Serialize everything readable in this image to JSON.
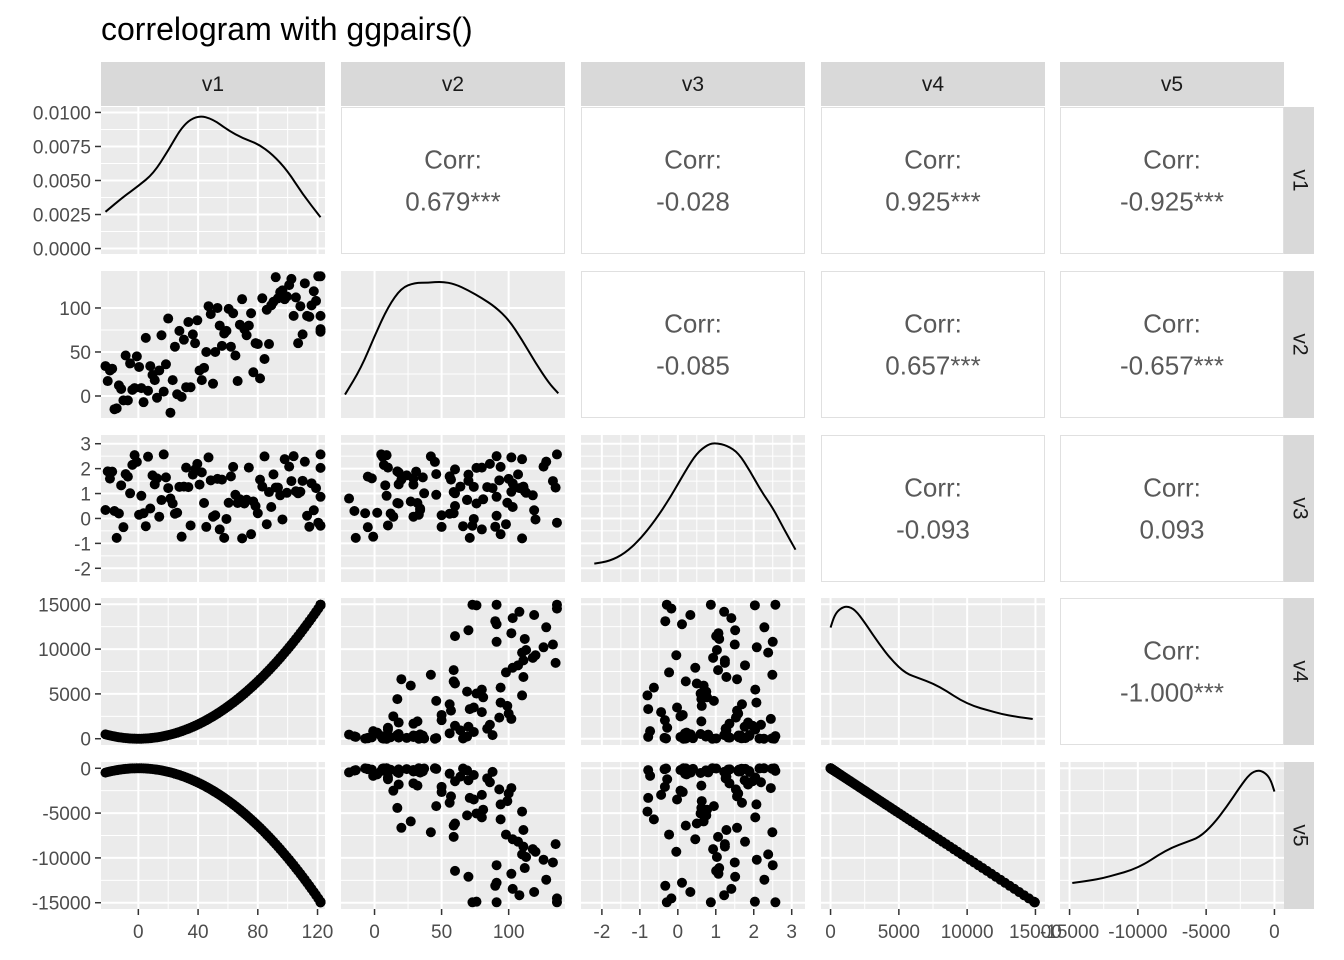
{
  "chart_data": {
    "type": "scatter",
    "title": "correlogram with ggpairs()",
    "variables": [
      "v1",
      "v2",
      "v3",
      "v4",
      "v5"
    ],
    "corr_label": "Corr:",
    "correlations": [
      {
        "row": "v1",
        "col": "v2",
        "value": "0.679***"
      },
      {
        "row": "v1",
        "col": "v3",
        "value": "-0.028"
      },
      {
        "row": "v1",
        "col": "v4",
        "value": "0.925***"
      },
      {
        "row": "v1",
        "col": "v5",
        "value": "-0.925***"
      },
      {
        "row": "v2",
        "col": "v3",
        "value": "-0.085"
      },
      {
        "row": "v2",
        "col": "v4",
        "value": "0.657***"
      },
      {
        "row": "v2",
        "col": "v5",
        "value": "-0.657***"
      },
      {
        "row": "v3",
        "col": "v4",
        "value": "-0.093"
      },
      {
        "row": "v3",
        "col": "v5",
        "value": "0.093"
      },
      {
        "row": "v4",
        "col": "v5",
        "value": "-1.000***"
      }
    ],
    "axes": {
      "v1": {
        "range": [
          -25,
          125
        ],
        "ticks": [
          0,
          40,
          80,
          120
        ],
        "tick_labels": [
          "0",
          "40",
          "80",
          "120"
        ]
      },
      "v2": {
        "range": [
          -25,
          142
        ],
        "ticks": [
          0,
          50,
          100
        ],
        "tick_labels": [
          "0",
          "50",
          "100"
        ]
      },
      "v3": {
        "range": [
          -2.55,
          3.35
        ],
        "ticks": [
          -2,
          -1,
          0,
          1,
          2,
          3
        ],
        "tick_labels": [
          "-2",
          "-1",
          "0",
          "1",
          "2",
          "3"
        ]
      },
      "v4": {
        "range": [
          -700,
          15700
        ],
        "ticks": [
          0,
          5000,
          10000,
          15000
        ],
        "tick_labels": [
          "0",
          "5000",
          "10000",
          "15000"
        ]
      },
      "v5": {
        "range": [
          -15700,
          700
        ],
        "ticks": [
          -15000,
          -10000,
          -5000,
          0
        ],
        "tick_labels": [
          "-15000",
          "-10000",
          "-5000",
          "0"
        ]
      }
    },
    "density_axis": {
      "range": [
        -0.0004,
        0.0104
      ],
      "ticks": [
        0,
        0.0025,
        0.005,
        0.0075,
        0.01
      ],
      "tick_labels": [
        "0.0000",
        "0.0025",
        "0.0050",
        "0.0075",
        "0.0100"
      ]
    },
    "densities": {
      "v1": {
        "x": [
          -22,
          -10,
          0,
          10,
          20,
          30,
          40,
          50,
          60,
          70,
          80,
          90,
          100,
          110,
          122
        ],
        "y": [
          0.0027,
          0.0038,
          0.0046,
          0.0055,
          0.0072,
          0.0091,
          0.0098,
          0.0095,
          0.0087,
          0.0081,
          0.0077,
          0.0069,
          0.0057,
          0.004,
          0.0023
        ]
      },
      "v2": {
        "x": [
          -22,
          -10,
          0,
          10,
          20,
          30,
          40,
          50,
          60,
          70,
          80,
          90,
          100,
          110,
          120,
          130,
          137
        ],
        "y": [
          0.09,
          0.3,
          0.55,
          0.78,
          0.93,
          0.97,
          0.97,
          0.98,
          0.96,
          0.91,
          0.85,
          0.78,
          0.68,
          0.52,
          0.34,
          0.18,
          0.1
        ]
      },
      "v3": {
        "x": [
          -2.2,
          -1.8,
          -1.4,
          -1.0,
          -0.6,
          -0.2,
          0.2,
          0.5,
          0.8,
          1.0,
          1.3,
          1.6,
          1.9,
          2.2,
          2.5,
          2.8,
          3.1
        ],
        "y": [
          0.05,
          0.07,
          0.13,
          0.24,
          0.39,
          0.57,
          0.78,
          0.92,
          0.99,
          1.0,
          0.98,
          0.92,
          0.78,
          0.62,
          0.49,
          0.32,
          0.16
        ]
      },
      "v4": {
        "x": [
          0,
          300,
          700,
          1200,
          1800,
          2500,
          3500,
          4500,
          5500,
          6500,
          7500,
          8500,
          9500,
          10500,
          11500,
          12500,
          13500,
          14800
        ],
        "y": [
          0.83,
          0.93,
          0.98,
          1.0,
          0.97,
          0.87,
          0.71,
          0.57,
          0.47,
          0.43,
          0.39,
          0.33,
          0.26,
          0.21,
          0.18,
          0.15,
          0.13,
          0.11
        ]
      },
      "v5": {
        "x": [
          -14800,
          -13500,
          -12500,
          -11500,
          -10500,
          -9500,
          -8500,
          -7500,
          -6500,
          -5500,
          -4500,
          -3500,
          -2500,
          -1800,
          -1200,
          -700,
          -300,
          0
        ],
        "y": [
          0.11,
          0.13,
          0.15,
          0.18,
          0.21,
          0.26,
          0.33,
          0.39,
          0.43,
          0.47,
          0.57,
          0.71,
          0.87,
          0.97,
          1.0,
          0.98,
          0.93,
          0.83
        ]
      }
    },
    "sample_size": 100,
    "points": {
      "v1": [
        -22,
        -20.5,
        -19,
        -17.5,
        -16,
        -14.5,
        -13,
        -11.5,
        -10,
        -8.5,
        -7,
        -5.5,
        -4,
        -2.5,
        -1,
        0.5,
        2,
        3.5,
        5,
        6.5,
        8,
        9.5,
        11,
        12.5,
        14,
        15.5,
        17,
        18.5,
        20,
        21.5,
        23,
        24.5,
        26,
        27.5,
        29,
        30.5,
        32,
        33.5,
        35,
        36.5,
        38,
        39.5,
        41,
        42.5,
        44,
        45.5,
        47,
        48.5,
        50,
        51.5,
        53,
        54.5,
        56,
        57.5,
        59,
        60.5,
        62,
        63.5,
        65,
        66.5,
        68,
        69.5,
        71,
        72.5,
        74,
        75.5,
        77,
        78.5,
        80,
        81.5,
        83,
        84.5,
        86,
        87.5,
        89,
        90.5,
        92,
        93.5,
        95,
        96.5,
        98,
        99.5,
        101,
        102.5,
        104,
        105.5,
        107,
        108.5,
        110,
        111.5,
        113,
        114.5,
        116,
        117.5,
        119,
        120.5,
        122,
        123.5,
        125,
        126.5
      ],
      "v2": [
        34,
        17,
        29,
        31,
        -15,
        -14,
        12,
        8,
        -5,
        46,
        -5,
        37,
        7,
        9,
        45,
        33,
        9,
        -7,
        66,
        6,
        34,
        24,
        18,
        -2,
        29,
        69,
        5,
        36,
        88,
        -19,
        18,
        56,
        2,
        74,
        -1,
        64,
        10,
        84,
        10,
        70,
        60,
        86,
        29,
        18,
        32,
        50,
        102,
        93,
        14,
        50,
        100,
        80,
        57,
        71,
        74,
        99,
        56,
        94,
        46,
        17,
        81,
        110,
        76,
        69,
        80,
        94,
        27,
        60,
        59,
        20,
        111,
        42,
        98,
        59,
        103,
        107,
        135,
        111,
        118,
        120,
        110,
        113,
        126,
        133,
        91,
        112,
        60,
        102,
        70,
        128,
        91,
        90,
        103,
        119,
        108,
        136,
        76,
        136,
        91,
        73
      ],
      "v3": [
        0.34,
        1.89,
        1.6,
        1.88,
        0.3,
        -0.78,
        0.2,
        1.33,
        -0.35,
        1.78,
        1.68,
        1.01,
        2.15,
        2.54,
        2.27,
        0.15,
        0.91,
        0.21,
        -0.31,
        2.48,
        0.4,
        1.73,
        1.37,
        1.61,
        0.07,
        0.74,
        2.57,
        1.65,
        1.22,
        0.8,
        0.6,
        0.19,
        0.23,
        1.27,
        -0.73,
        1.28,
        2.04,
        1.26,
        -0.28,
        1.76,
        1.97,
        2.19,
        1.36,
        1.85,
        0.62,
        -0.34,
        2.45,
        1.53,
        0.07,
        0.13,
        1.59,
        -0.44,
        1.56,
        -0.78,
        -0.02,
        0.63,
        1.69,
        2.07,
        0.95,
        0.62,
        0.77,
        -0.8,
        0.6,
        0.75,
        2.04,
        -0.63,
        0.68,
        0.5,
        0.21,
        1.56,
        1.28,
        2.49,
        -0.23,
        1.06,
        0.46,
        1.77,
        1.24,
        1.24,
        0.93,
        -0.04,
        2.38,
        1.03,
        2.08,
        1.5,
        2.5,
        1.09,
        1.01,
        1.07,
        1.51,
        2.28,
        0.11,
        -0.33,
        1.41,
        0.33,
        1.22,
        -0.17,
        2.03,
        2.57,
        0.87,
        -0.29
      ]
    }
  }
}
